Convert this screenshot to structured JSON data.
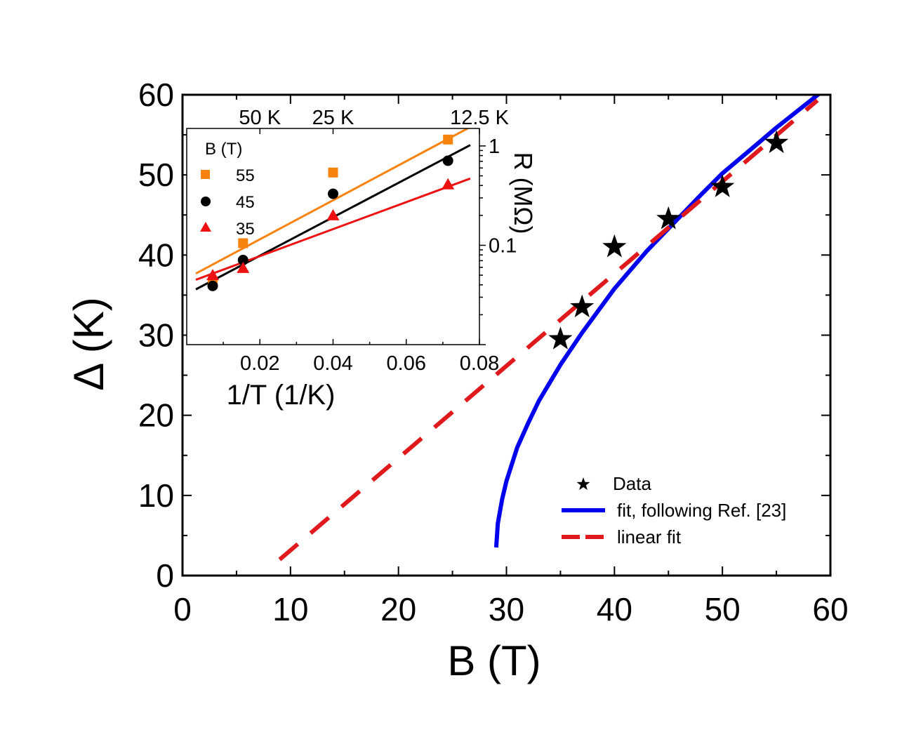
{
  "chart_data": [
    {
      "type": "scatter",
      "title": "",
      "xlabel": "B (T)",
      "ylabel": "Δ (K)",
      "xlim": [
        0,
        60
      ],
      "ylim": [
        0,
        60
      ],
      "xticks": [
        "0",
        "10",
        "20",
        "30",
        "40",
        "50",
        "60"
      ],
      "yticks": [
        "0",
        "10",
        "20",
        "30",
        "40",
        "50",
        "60"
      ],
      "legend": {
        "position": "bottom-right",
        "entries": [
          "Data",
          "fit, following Ref. [23]",
          "linear fit"
        ]
      },
      "series": [
        {
          "name": "Data",
          "kind": "points",
          "color": "#000000",
          "marker": "star",
          "x": [
            35,
            37,
            40,
            45,
            50,
            55
          ],
          "y": [
            29.5,
            33.5,
            41,
            44.5,
            48.5,
            54
          ]
        },
        {
          "name": "fit, following Ref. [23]",
          "kind": "line",
          "color": "#0000ee",
          "x": [
            29.05,
            29.2,
            29.6,
            30.0,
            31.0,
            32.0,
            33.0,
            35.0,
            37.0,
            40.0,
            43.0,
            45.0,
            48.0,
            50.0,
            53.0,
            55.0,
            58.0,
            59.3
          ],
          "y": [
            3.5,
            6.5,
            9.5,
            11.8,
            16.0,
            19.0,
            21.8,
            26.3,
            30.3,
            35.8,
            40.5,
            43.3,
            47.5,
            50.2,
            53.6,
            55.9,
            59.1,
            60.5
          ]
        },
        {
          "name": "linear fit",
          "kind": "dashed-line",
          "color": "#e0191d",
          "x": [
            9.0,
            58.8
          ],
          "y": [
            2.0,
            59.3
          ]
        }
      ]
    },
    {
      "type": "scatter",
      "title": "",
      "xlabel": "1/T (1/K)",
      "ylabel": "R (MΩ)",
      "xlim": [
        0,
        0.08
      ],
      "ylim": [
        0.01,
        1.5
      ],
      "yscale": "log",
      "xticks": [
        "0.02",
        "0.04",
        "0.06",
        "0.08"
      ],
      "yticks": [
        "0.1",
        "1"
      ],
      "top_ticks": [
        "50 K",
        "25 K",
        "12.5 K"
      ],
      "legend": {
        "position": "top-left",
        "title": "B (T)",
        "entries": [
          "55",
          "45",
          "35"
        ]
      },
      "series": [
        {
          "name": "55",
          "color": "#f7830f",
          "marker": "square",
          "x": [
            0.0071,
            0.0154,
            0.04,
            0.0714
          ],
          "y": [
            0.043,
            0.105,
            0.54,
            1.16
          ],
          "fit": {
            "x": [
              0.0025,
              0.0775
            ],
            "y": [
              0.052,
              1.55
            ]
          }
        },
        {
          "name": "45",
          "color": "#000000",
          "marker": "circle",
          "x": [
            0.0071,
            0.0154,
            0.04,
            0.0714
          ],
          "y": [
            0.039,
            0.071,
            0.33,
            0.71
          ],
          "fit": {
            "x": [
              0.0025,
              0.0775
            ],
            "y": [
              0.036,
              1.02
            ]
          }
        },
        {
          "name": "35",
          "color": "#ee1111",
          "marker": "triangle",
          "x": [
            0.0071,
            0.0154,
            0.04,
            0.0714
          ],
          "y": [
            0.05,
            0.059,
            0.2,
            0.41
          ],
          "fit": {
            "x": [
              0.0025,
              0.0775
            ],
            "y": [
              0.045,
              0.47
            ]
          }
        }
      ]
    }
  ]
}
